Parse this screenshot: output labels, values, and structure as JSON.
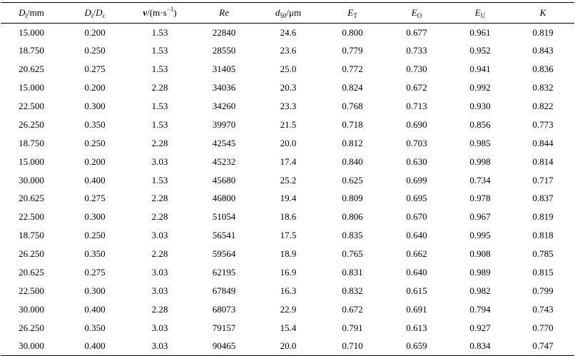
{
  "header": {
    "di_mm": {
      "var": "D",
      "sub": "i",
      "rest": "/mm"
    },
    "di_dc": {
      "var": "D",
      "sub": "i",
      "slash": "/",
      "var2": "D",
      "sub2": "c"
    },
    "v": {
      "var": "v",
      "rest": "/(m·s",
      "sup": "−1",
      "close": ")"
    },
    "re": {
      "var": "Re"
    },
    "d50": {
      "var": "d",
      "sub": "50",
      "rest": "/μm"
    },
    "et": {
      "var": "E",
      "sub": "T"
    },
    "eo": {
      "var": "E",
      "sub": "O"
    },
    "eu": {
      "var": "E",
      "sub": "U"
    },
    "k": {
      "var": "K"
    }
  },
  "rows": [
    [
      "15.000",
      "0.200",
      "1.53",
      "22840",
      "24.6",
      "0.800",
      "0.677",
      "0.961",
      "0.819"
    ],
    [
      "18.750",
      "0.250",
      "1.53",
      "28550",
      "23.6",
      "0.779",
      "0.733",
      "0.952",
      "0.843"
    ],
    [
      "20.625",
      "0.275",
      "1.53",
      "31405",
      "25.0",
      "0.772",
      "0.730",
      "0.941",
      "0.836"
    ],
    [
      "15.000",
      "0.200",
      "2.28",
      "34036",
      "20.3",
      "0.824",
      "0.672",
      "0.992",
      "0.832"
    ],
    [
      "22.500",
      "0.300",
      "1.53",
      "34260",
      "23.3",
      "0.768",
      "0.713",
      "0.930",
      "0.822"
    ],
    [
      "26.250",
      "0.350",
      "1.53",
      "39970",
      "21.5",
      "0.718",
      "0.690",
      "0.856",
      "0.773"
    ],
    [
      "18.750",
      "0.250",
      "2.28",
      "42545",
      "20.0",
      "0.812",
      "0.703",
      "0.985",
      "0.844"
    ],
    [
      "15.000",
      "0.200",
      "3.03",
      "45232",
      "17.4",
      "0.840",
      "0.630",
      "0.998",
      "0.814"
    ],
    [
      "30.000",
      "0.400",
      "1.53",
      "45680",
      "25.2",
      "0.625",
      "0.699",
      "0.734",
      "0.717"
    ],
    [
      "20.625",
      "0.275",
      "2.28",
      "46800",
      "19.4",
      "0.809",
      "0.695",
      "0.978",
      "0.837"
    ],
    [
      "22.500",
      "0.300",
      "2.28",
      "51054",
      "18.6",
      "0.806",
      "0.670",
      "0.967",
      "0.819"
    ],
    [
      "18.750",
      "0.250",
      "3.03",
      "56541",
      "17.5",
      "0.835",
      "0.640",
      "0.995",
      "0.818"
    ],
    [
      "26.250",
      "0.350",
      "2.28",
      "59564",
      "18.9",
      "0.765",
      "0.662",
      "0.908",
      "0.785"
    ],
    [
      "20.625",
      "0.275",
      "3.03",
      "62195",
      "16.9",
      "0.831",
      "0.640",
      "0.989",
      "0.815"
    ],
    [
      "22.500",
      "0.300",
      "3.03",
      "67849",
      "16.3",
      "0.832",
      "0.615",
      "0.982",
      "0.799"
    ],
    [
      "30.000",
      "0.400",
      "2.28",
      "68073",
      "22.9",
      "0.672",
      "0.691",
      "0.794",
      "0.743"
    ],
    [
      "26.250",
      "0.350",
      "3.03",
      "79157",
      "15.4",
      "0.791",
      "0.613",
      "0.927",
      "0.770"
    ],
    [
      "30.000",
      "0.400",
      "3.03",
      "90465",
      "20.0",
      "0.710",
      "0.659",
      "0.834",
      "0.747"
    ]
  ]
}
